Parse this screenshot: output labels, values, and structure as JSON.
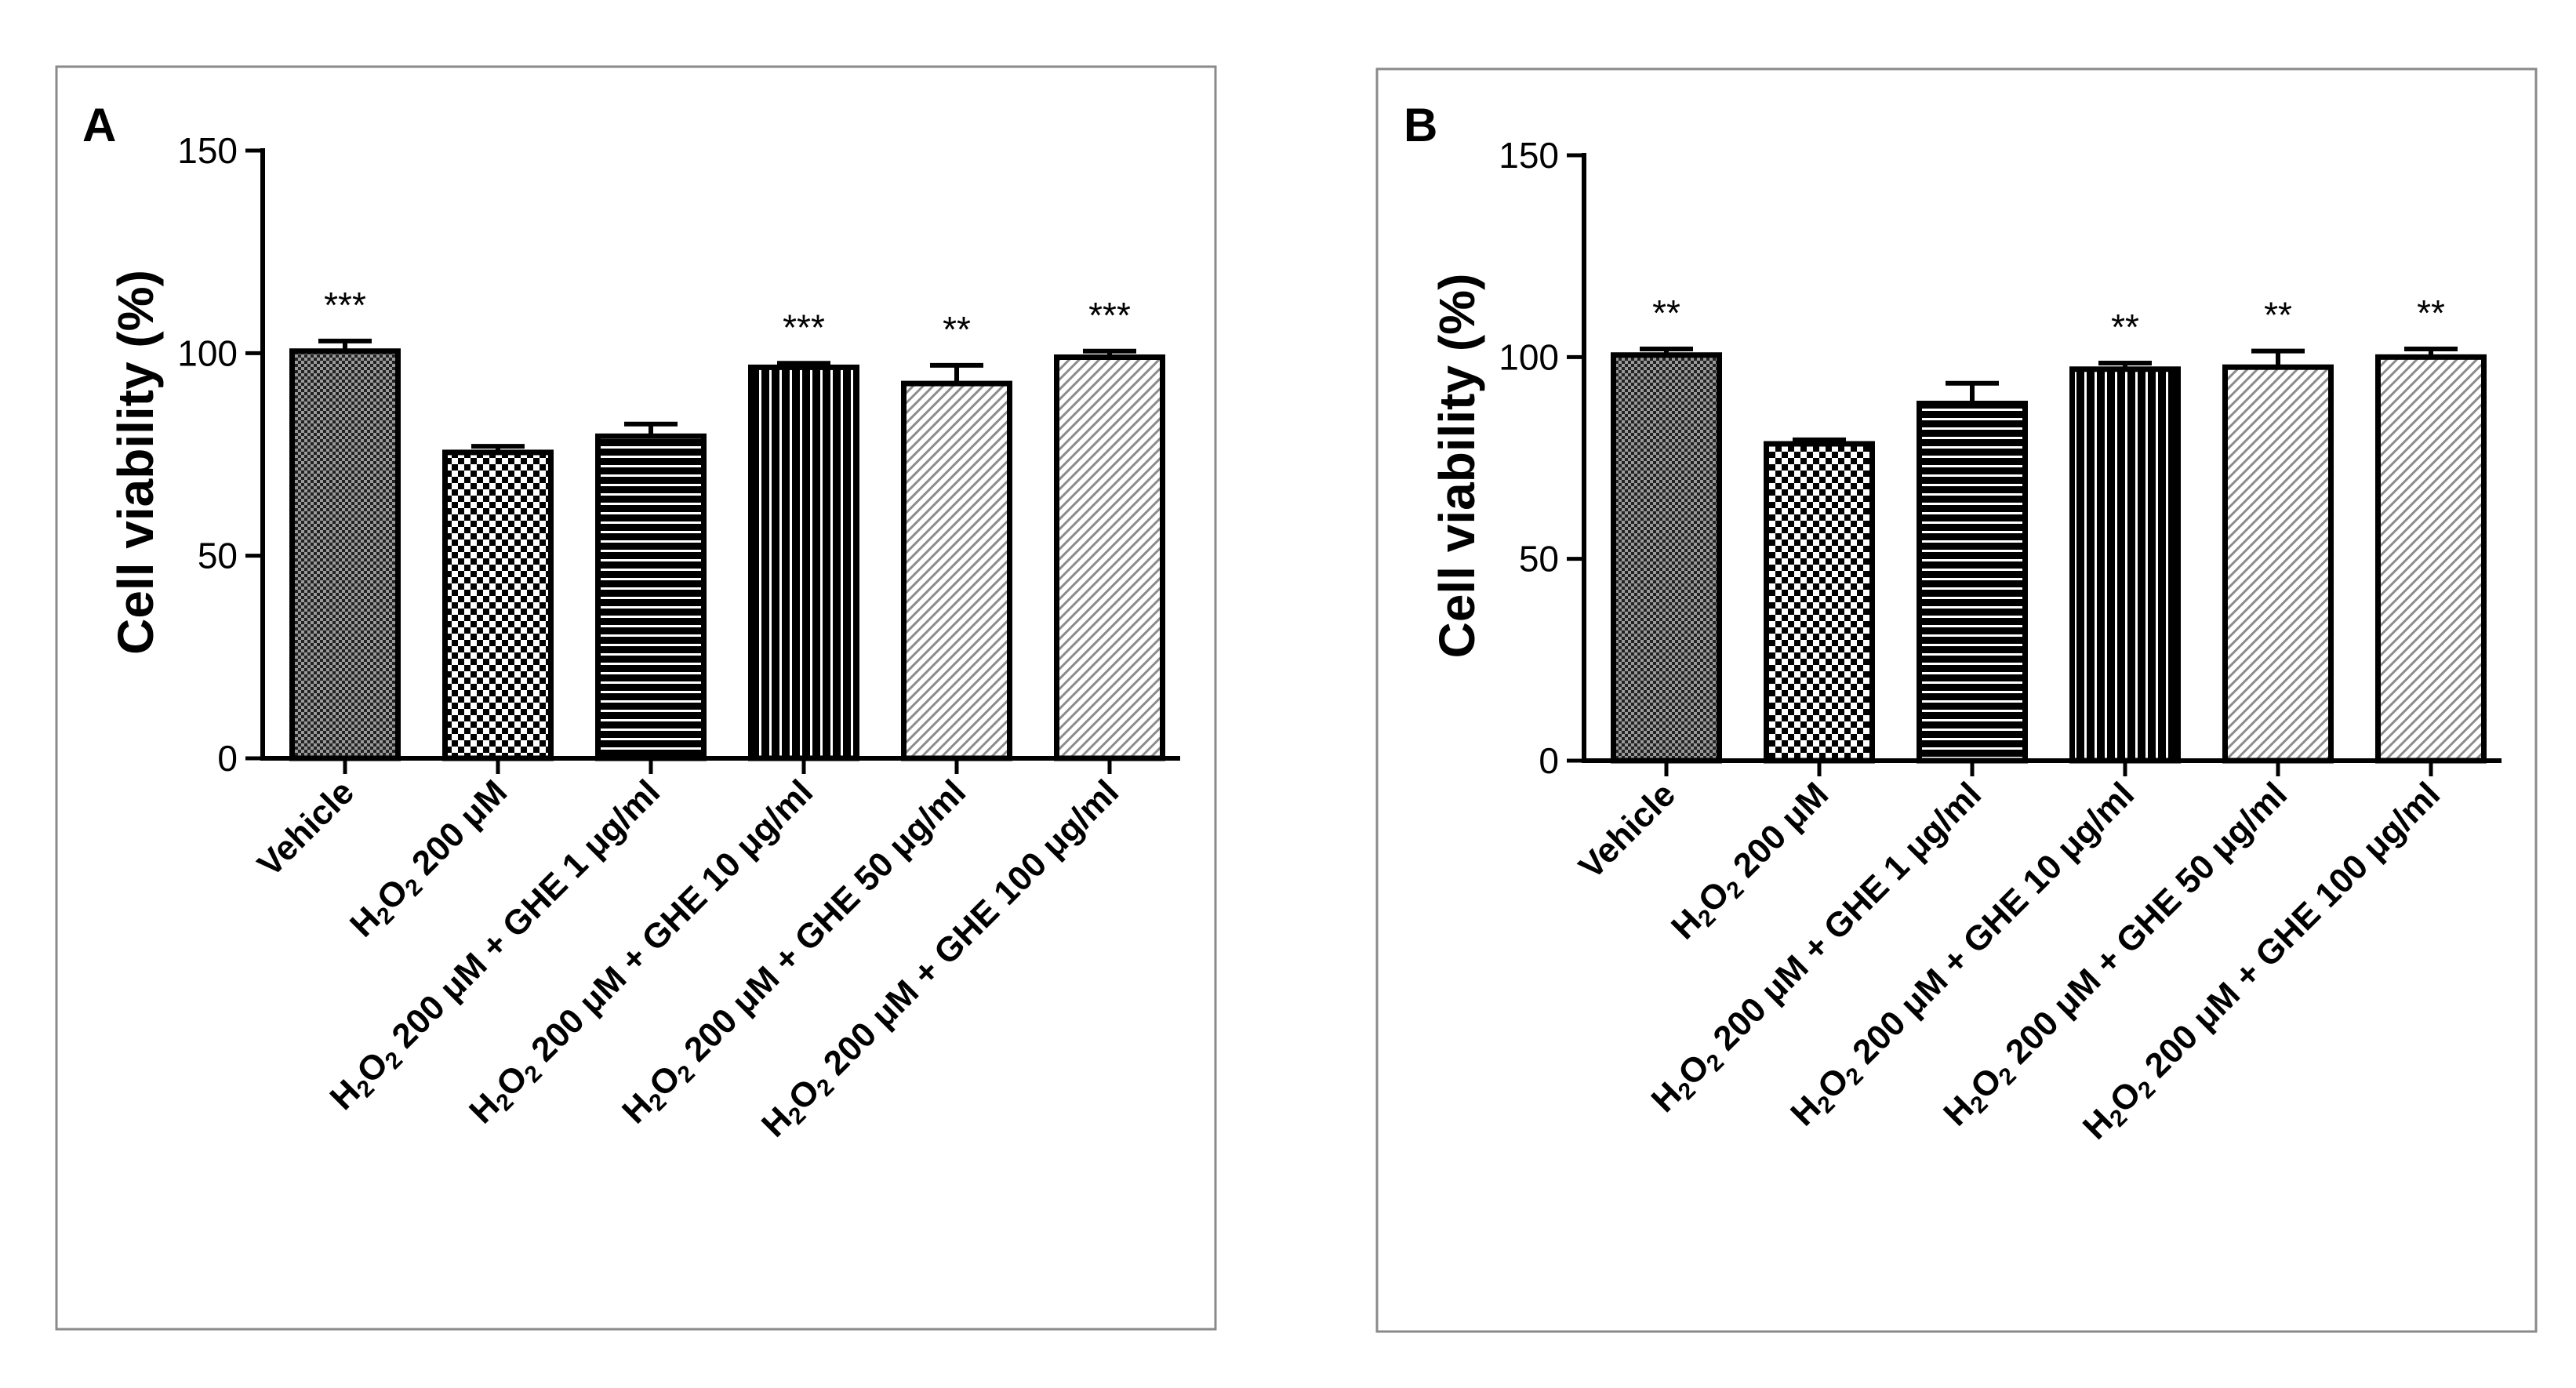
{
  "chart_data": [
    {
      "type": "bar",
      "panel": "A",
      "ylabel": "Cell viability (%)",
      "ylim": [
        0,
        150
      ],
      "yticks": [
        0,
        50,
        100,
        150
      ],
      "categories": [
        "Vehicle",
        "H2O2 200 μM",
        "H2O2 200 μM + GHE 1 μg/ml",
        "H2O2 200 μM + GHE 10 μg/ml",
        "H2O2 200 μM + GHE 50 μg/ml",
        "H2O2 200 μM + GHE 100 μg/ml"
      ],
      "values": [
        100.5,
        75.5,
        79.5,
        96.5,
        92.5,
        99
      ],
      "errors": [
        2.5,
        1.5,
        3,
        1,
        4.5,
        1.5
      ],
      "significance": [
        "***",
        "",
        "",
        "***",
        "**",
        "***"
      ],
      "patterns": [
        "dots-dense",
        "checker",
        "hstripes",
        "vstripes",
        "diag-light",
        "diag-light"
      ]
    },
    {
      "type": "bar",
      "panel": "B",
      "ylabel": "Cell viability (%)",
      "ylim": [
        0,
        150
      ],
      "yticks": [
        0,
        50,
        100,
        150
      ],
      "categories": [
        "Vehicle",
        "H2O2 200 μM",
        "H2O2 200 μM + GHE 1 μg/ml",
        "H2O2 200 μM + GHE 10 μg/ml",
        "H2O2 200 μM + GHE 50 μg/ml",
        "H2O2 200 μM + GHE 100 μg/ml"
      ],
      "values": [
        100.5,
        78.5,
        88.5,
        97,
        97.5,
        100
      ],
      "errors": [
        1.5,
        1,
        5,
        1.5,
        4,
        2
      ],
      "significance": [
        "**",
        "",
        "",
        "**",
        "**",
        "**"
      ],
      "patterns": [
        "dots-dense",
        "checker",
        "hstripes",
        "vstripes",
        "diag-light",
        "diag-light"
      ]
    }
  ]
}
